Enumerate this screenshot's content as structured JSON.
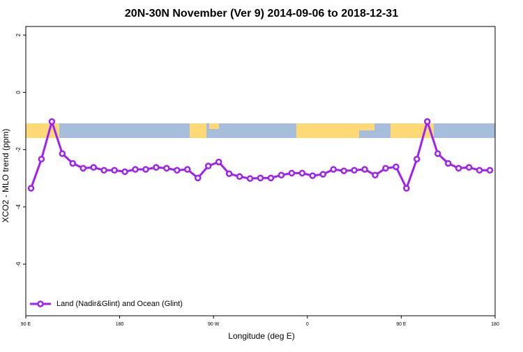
{
  "chart_data": {
    "type": "line",
    "title": "20N-30N November (Ver 9)   2014-09-06 to 2018-12-31",
    "x_label": "Longitude (deg E)",
    "y_label": "XCO2 - MLO trend (ppm)",
    "x": [
      95,
      105,
      115,
      125,
      135,
      145,
      155,
      165,
      175,
      185,
      195,
      205,
      215,
      225,
      235,
      245,
      255,
      265,
      275,
      285,
      295,
      305,
      315,
      325,
      335,
      345,
      355,
      365,
      375,
      385,
      395,
      405,
      415,
      425,
      435,
      445,
      455,
      465,
      475,
      485,
      495,
      505,
      515,
      525,
      535
    ],
    "series": [
      {
        "name": "Land (Nadir&Glint) and Ocean (Glint)",
        "color": "#a020f0",
        "values": [
          -3.35,
          -2.33,
          -1.02,
          -2.14,
          -2.48,
          -2.65,
          -2.62,
          -2.72,
          -2.72,
          -2.77,
          -2.69,
          -2.69,
          -2.62,
          -2.65,
          -2.72,
          -2.69,
          -2.99,
          -2.57,
          -2.43,
          -2.84,
          -2.94,
          -3.01,
          -2.99,
          -2.99,
          -2.89,
          -2.82,
          -2.82,
          -2.91,
          -2.86,
          -2.69,
          -2.74,
          -2.72,
          -2.69,
          -2.89,
          -2.65,
          -2.6,
          -3.35,
          -2.33,
          -1.02,
          -2.14,
          -2.48,
          -2.65,
          -2.62,
          -2.72,
          -2.72
        ]
      }
    ],
    "xlim": [
      90,
      540
    ],
    "xticks": [
      {
        "value": 90,
        "label": "90 E"
      },
      180,
      {
        "value": 270,
        "label": "90 W"
      },
      {
        "value": 360,
        "label": "0"
      },
      {
        "value": 450,
        "label": "90 E"
      },
      {
        "value": 540,
        "label": "180"
      }
    ],
    "ylim": [
      -7.8,
      2.3
    ],
    "yticks": [
      -6,
      -4,
      -2,
      0,
      2
    ],
    "legend": "bottom-left"
  }
}
